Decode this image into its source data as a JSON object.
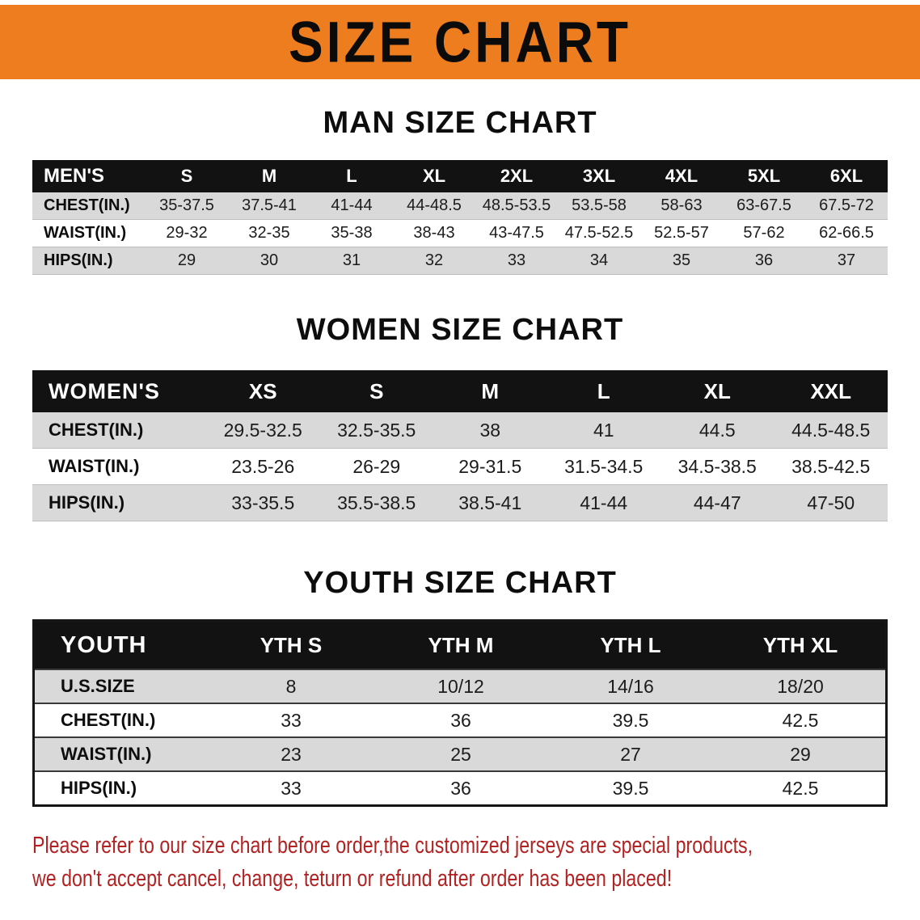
{
  "banner": {
    "title": "SIZE CHART"
  },
  "colors": {
    "banner_bg": "#ED7D1E",
    "table_header_bg": "#121212",
    "table_header_text": "#FFFFFF",
    "shaded_row_bg": "#D9D9D9",
    "disclaimer_text": "#B22222"
  },
  "chart_data": [
    {
      "type": "table",
      "title": "MAN SIZE CHART",
      "header": [
        "MEN'S",
        "S",
        "M",
        "L",
        "XL",
        "2XL",
        "3XL",
        "4XL",
        "5XL",
        "6XL"
      ],
      "rows": [
        [
          "CHEST(IN.)",
          "35-37.5",
          "37.5-41",
          "41-44",
          "44-48.5",
          "48.5-53.5",
          "53.5-58",
          "58-63",
          "63-67.5",
          "67.5-72"
        ],
        [
          "WAIST(IN.)",
          "29-32",
          "32-35",
          "35-38",
          "38-43",
          "43-47.5",
          "47.5-52.5",
          "52.5-57",
          "57-62",
          "62-66.5"
        ],
        [
          "HIPS(IN.)",
          "29",
          "30",
          "31",
          "32",
          "33",
          "34",
          "35",
          "36",
          "37"
        ]
      ]
    },
    {
      "type": "table",
      "title": "WOMEN SIZE CHART",
      "header": [
        "WOMEN'S",
        "XS",
        "S",
        "M",
        "L",
        "XL",
        "XXL"
      ],
      "rows": [
        [
          "CHEST(IN.)",
          "29.5-32.5",
          "32.5-35.5",
          "38",
          "41",
          "44.5",
          "44.5-48.5"
        ],
        [
          "WAIST(IN.)",
          "23.5-26",
          "26-29",
          "29-31.5",
          "31.5-34.5",
          "34.5-38.5",
          "38.5-42.5"
        ],
        [
          "HIPS(IN.)",
          "33-35.5",
          "35.5-38.5",
          "38.5-41",
          "41-44",
          "44-47",
          "47-50"
        ]
      ]
    },
    {
      "type": "table",
      "title": "YOUTH SIZE CHART",
      "header": [
        "YOUTH",
        "YTH S",
        "YTH M",
        "YTH L",
        "YTH XL"
      ],
      "rows": [
        [
          "U.S.SIZE",
          "8",
          "10/12",
          "14/16",
          "18/20"
        ],
        [
          "CHEST(IN.)",
          "33",
          "36",
          "39.5",
          "42.5"
        ],
        [
          "WAIST(IN.)",
          "23",
          "25",
          "27",
          "29"
        ],
        [
          "HIPS(IN.)",
          "33",
          "36",
          "39.5",
          "42.5"
        ]
      ]
    }
  ],
  "disclaimer": {
    "line1": "Please refer to our size chart before order,the customized jerseys are special products,",
    "line2": "we don't accept cancel, change, teturn or refund after order has been placed!"
  }
}
